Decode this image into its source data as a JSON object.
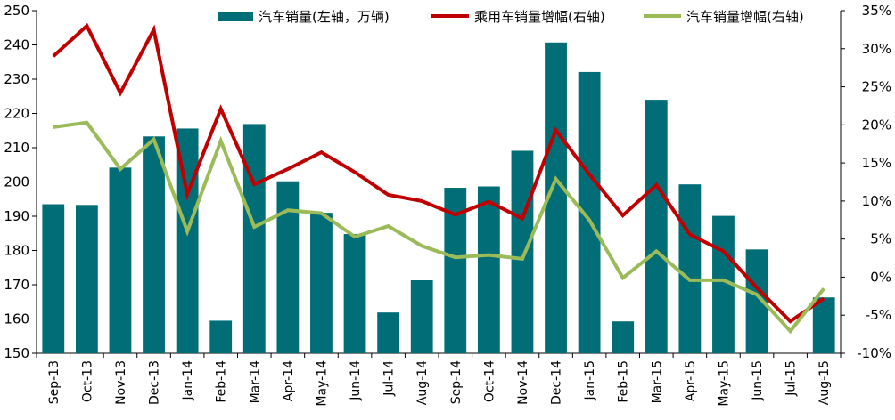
{
  "chart_data": {
    "type": "bar",
    "categories": [
      "Sep-13",
      "Oct-13",
      "Nov-13",
      "Dec-13",
      "Jan-14",
      "Feb-14",
      "Mar-14",
      "Apr-14",
      "May-14",
      "Jun-14",
      "Jul-14",
      "Aug-14",
      "Sep-14",
      "Oct-14",
      "Nov-14",
      "Dec-14",
      "Jan-15",
      "Feb-15",
      "Mar-15",
      "Apr-15",
      "May-15",
      "Jun-15",
      "Jul-15",
      "Aug-15"
    ],
    "ylim": [
      150,
      250
    ],
    "yticks": [
      "150",
      "160",
      "170",
      "180",
      "190",
      "200",
      "210",
      "220",
      "230",
      "240",
      "250"
    ],
    "y2lim": [
      -10,
      35
    ],
    "y2ticks": [
      "-10%",
      "-5%",
      "0%",
      "5%",
      "10%",
      "15%",
      "20%",
      "25%",
      "30%",
      "35%"
    ],
    "legend_position": "top",
    "series": [
      {
        "name": "汽车销量(左轴，万辆)",
        "type": "bar",
        "axis": "left",
        "color": "#006d77",
        "values": [
          193.5,
          193.3,
          204.2,
          213.3,
          215.6,
          159.5,
          216.9,
          200.2,
          191.0,
          184.8,
          161.9,
          171.3,
          198.3,
          198.7,
          209.1,
          240.7,
          232.1,
          159.3,
          224.0,
          199.3,
          190.1,
          180.3,
          null,
          166.3
        ]
      },
      {
        "name": "乘用车销量增幅(右轴)",
        "type": "line",
        "axis": "right",
        "color": "#c00000",
        "values": [
          29.0,
          33.0,
          24.2,
          32.5,
          10.9,
          22.1,
          12.2,
          14.2,
          16.4,
          13.8,
          10.8,
          10.0,
          8.2,
          9.9,
          7.7,
          19.3,
          13.5,
          8.1,
          12.1,
          5.6,
          3.4,
          -1.4,
          -5.8,
          -2.8
        ]
      },
      {
        "name": "汽车销量增幅(右轴)",
        "type": "line",
        "axis": "right",
        "color": "#9bbb59",
        "values": [
          19.7,
          20.3,
          14.2,
          18.1,
          6.0,
          17.9,
          6.6,
          8.8,
          8.4,
          5.3,
          6.7,
          4.1,
          2.6,
          2.9,
          2.4,
          12.9,
          7.5,
          -0.1,
          3.4,
          -0.4,
          -0.4,
          -2.3,
          -7.1,
          -1.5
        ]
      }
    ]
  }
}
